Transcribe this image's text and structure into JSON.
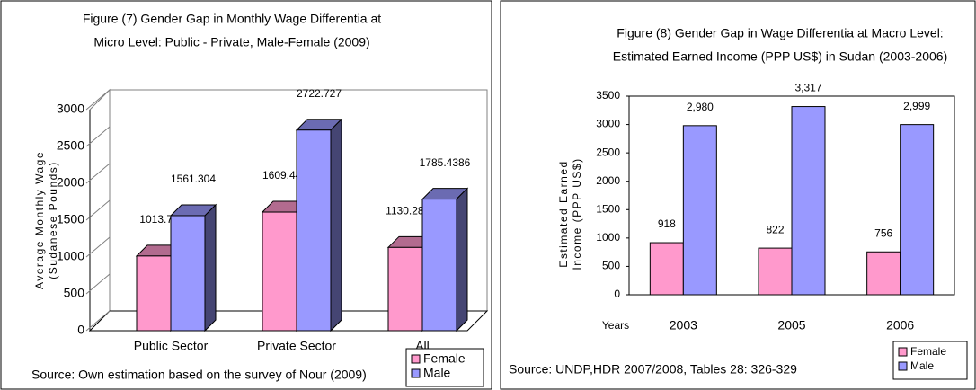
{
  "chart_data": [
    {
      "type": "bar3d",
      "title": [
        "Figure (7) Gender Gap in Monthly Wage Differentia at",
        "Micro Level: Public - Private, Male-Female (2009)"
      ],
      "ylabel": [
        "Average Monthly Wage",
        "(Sudanese Pounds)"
      ],
      "categories": [
        "Public Sector",
        "Private Sector",
        "All"
      ],
      "series": [
        {
          "name": "Female",
          "color": "#ff99cc",
          "values": [
            1013.73,
            1609.444,
            1130.2826
          ]
        },
        {
          "name": "Male",
          "color": "#9999ff",
          "values": [
            1561.304,
            2722.727,
            1785.4386
          ]
        }
      ],
      "ylim": [
        0,
        3000
      ],
      "yticks": [
        0,
        500,
        1000,
        1500,
        2000,
        2500,
        3000
      ],
      "source": "Source: Own estimation based on the survey of Nour (2009)"
    },
    {
      "type": "bar",
      "title": [
        "Figure (8) Gender Gap in Wage Differentia at Macro Level:",
        "Estimated Earned Income (PPP US$) in Sudan (2003-2006)"
      ],
      "ylabel": [
        "Estimated Earned",
        "Income (PPP US$)"
      ],
      "xlabel": "Years",
      "categories": [
        "2003",
        "2005",
        "2006"
      ],
      "series": [
        {
          "name": "Female",
          "color": "#ff99cc",
          "values": [
            918,
            822,
            756
          ]
        },
        {
          "name": "Male",
          "color": "#9999ff",
          "values": [
            2980,
            3317,
            2999
          ],
          "value_labels": [
            "2,980",
            "3,317",
            "2,999"
          ]
        }
      ],
      "ylim": [
        0,
        3500
      ],
      "yticks": [
        0,
        500,
        1000,
        1500,
        2000,
        2500,
        3000,
        3500
      ],
      "source": "Source: UNDP,HDR 2007/2008, Tables 28: 326-329"
    }
  ]
}
